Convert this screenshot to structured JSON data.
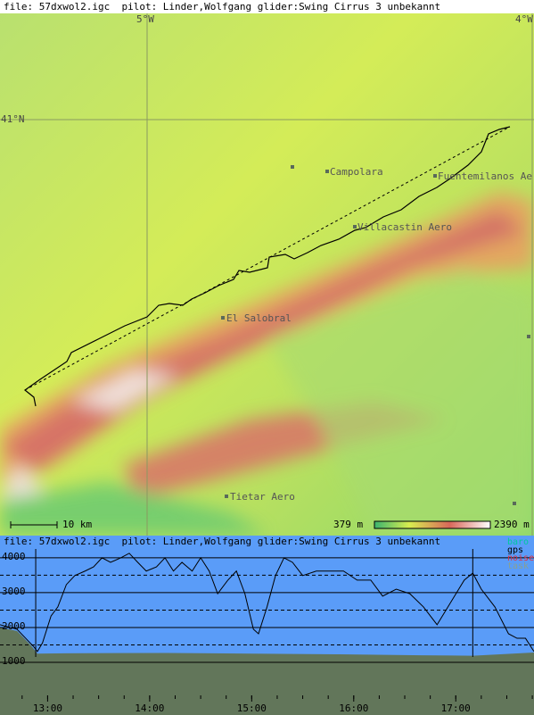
{
  "map": {
    "header": "file: 57dxwol2.igc  pilot: Linder,Wolfgang glider:Swing Cirrus 3 unbekannt",
    "lon_labels": [
      "5°W",
      "4°W"
    ],
    "lat_labels": [
      "41°N"
    ],
    "places": [
      "Campolara",
      "Fuentemilanos Ae",
      "Villacastin Aero",
      "El Salobral",
      "Tietar Aero"
    ],
    "scale": "10 km",
    "elev_min": "379 m",
    "elev_max": "2390 m"
  },
  "chart_data": {
    "type": "line",
    "title": "file: 57dxwol2.igc  pilot: Linder,Wolfgang glider:Swing Cirrus 3 unbekannt",
    "x": [
      752,
      762,
      772,
      774,
      777,
      782,
      786,
      791,
      796,
      802,
      807,
      812,
      817,
      823,
      828,
      833,
      838,
      844,
      849,
      854,
      859,
      865,
      870,
      875,
      880,
      886,
      891,
      896,
      901,
      904,
      909,
      914,
      919,
      924,
      930,
      938,
      946,
      954,
      962,
      970,
      977,
      985,
      993,
      1001,
      1009,
      1017,
      1025,
      1030,
      1035,
      1043,
      1051,
      1056,
      1061,
      1066
    ],
    "series": [
      {
        "name": "gps",
        "color": "#000000",
        "values": [
          2080,
          1950,
          1440,
          1310,
          1560,
          2330,
          2590,
          3230,
          3490,
          3620,
          3740,
          4000,
          3870,
          4000,
          4130,
          3870,
          3620,
          3740,
          4000,
          3620,
          3870,
          3620,
          4000,
          3620,
          2970,
          3360,
          3620,
          2970,
          1950,
          1820,
          2590,
          3490,
          4000,
          3870,
          3490,
          3620,
          3620,
          3620,
          3360,
          3360,
          2900,
          3100,
          2970,
          2590,
          2080,
          2720,
          3360,
          3560,
          3100,
          2590,
          1820,
          1690,
          1690,
          1310
        ]
      }
    ],
    "terrain": {
      "x": [
        752,
        762,
        770,
        774,
        790,
        850,
        900,
        950,
        1000,
        1030,
        1066
      ],
      "values": [
        2000,
        1900,
        1500,
        1250,
        1260,
        1270,
        1250,
        1230,
        1200,
        1190,
        1280
      ],
      "color": "#62765a"
    },
    "markers": [
      773,
      1030
    ],
    "xlim": [
      752,
      1066
    ],
    "ylim": [
      0,
      4500
    ],
    "xticks": [
      {
        "value": 780,
        "label": "13:00"
      },
      {
        "value": 840,
        "label": "14:00"
      },
      {
        "value": 900,
        "label": "15:00"
      },
      {
        "value": 960,
        "label": "16:00"
      },
      {
        "value": 1020,
        "label": "17:00"
      }
    ],
    "yticks": [
      1000,
      2000,
      3000,
      4000
    ],
    "legend": [
      {
        "name": "baro",
        "color": "#00c8a0"
      },
      {
        "name": "gps",
        "color": "#000000"
      },
      {
        "name": "noise",
        "color": "#e03040"
      },
      {
        "name": "task",
        "color": "#8aa090"
      }
    ],
    "background": "#5a9cf8"
  }
}
